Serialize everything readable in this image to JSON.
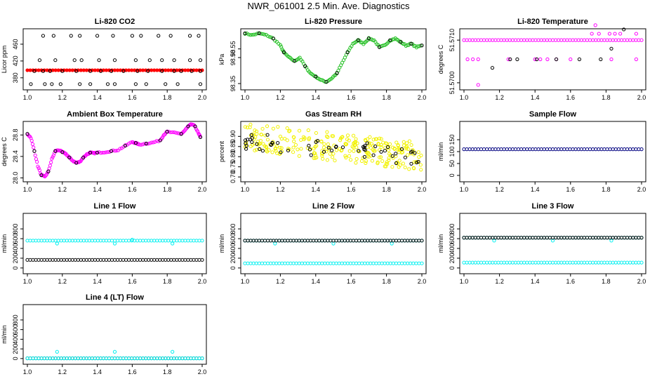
{
  "page_title": "NWR_061001  2.5 Min. Ave. Diagnostics",
  "colors": {
    "black": "#000000",
    "red": "#ff0000",
    "green": "#22c022",
    "magenta": "#ff00ff",
    "yellow": "#f2f200",
    "cyan": "#00f0f0",
    "navy": "#000080"
  },
  "chart_data": [
    {
      "type": "scatter",
      "title": "Li-820 CO2",
      "xlabel": "",
      "ylabel": "Licor ppm",
      "xlim": [
        1.0,
        2.0
      ],
      "ylim": [
        358,
        490
      ],
      "x_ticks": [
        "1.0",
        "1.2",
        "1.4",
        "1.6",
        "1.8",
        "2.0"
      ],
      "y_ticks": [
        "380",
        "420",
        "460"
      ],
      "series": [
        {
          "color": "red",
          "kind": "band",
          "x": [
            1.0,
            1.2,
            1.4,
            1.6,
            1.8,
            2.0
          ],
          "y": [
            398,
            398,
            398,
            398,
            398,
            398
          ]
        },
        {
          "color": "black",
          "kind": "rows",
          "x": [
            1.0,
            1.16,
            1.5,
            1.83,
            1.99
          ],
          "y": [
            [
              480,
              1.09,
              1.15,
              1.25,
              1.3,
              1.4,
              1.49,
              1.6,
              1.65,
              1.75,
              1.82,
              1.93,
              1.98
            ],
            [
              422,
              1.07,
              1.16,
              1.27,
              1.31,
              1.41,
              1.5,
              1.62,
              1.7,
              1.77,
              1.84,
              1.93,
              1.99
            ],
            [
              396,
              1.04,
              1.09,
              1.13,
              1.2,
              1.28,
              1.36,
              1.42,
              1.48,
              1.55,
              1.63,
              1.69,
              1.77,
              1.84,
              1.88,
              1.94,
              1.99
            ],
            [
              365,
              1.02,
              1.1,
              1.14,
              1.19,
              1.3,
              1.36,
              1.46,
              1.5,
              1.62,
              1.68,
              1.79,
              1.86,
              1.99
            ]
          ]
        }
      ]
    },
    {
      "type": "scatter",
      "title": "Li-820 Pressure",
      "xlabel": "",
      "ylabel": "kPa",
      "xlim": [
        1.0,
        2.0
      ],
      "ylim": [
        98.33,
        98.65
      ],
      "x_ticks": [
        "1.0",
        "1.2",
        "1.4",
        "1.6",
        "1.8",
        "2.0"
      ],
      "y_ticks": [
        "98.35",
        "98.50",
        "98.55"
      ],
      "series": [
        {
          "color": "green",
          "kind": "line",
          "x": [
            1.0,
            1.04,
            1.08,
            1.12,
            1.16,
            1.2,
            1.22,
            1.25,
            1.28,
            1.31,
            1.34,
            1.37,
            1.4,
            1.43,
            1.46,
            1.49,
            1.52,
            1.55,
            1.58,
            1.61,
            1.64,
            1.67,
            1.7,
            1.73,
            1.76,
            1.79,
            1.82,
            1.85,
            1.88,
            1.91,
            1.94,
            1.97,
            2.0
          ],
          "y": [
            98.64,
            98.63,
            98.64,
            98.63,
            98.61,
            98.57,
            98.53,
            98.5,
            98.48,
            98.5,
            98.45,
            98.41,
            98.39,
            98.37,
            98.36,
            98.38,
            98.41,
            98.47,
            98.53,
            98.58,
            98.6,
            98.58,
            98.61,
            98.6,
            98.56,
            98.57,
            98.6,
            98.61,
            98.59,
            98.57,
            98.58,
            98.56,
            98.57
          ]
        }
      ]
    },
    {
      "type": "scatter",
      "title": "Li-820 Temperature",
      "xlabel": "",
      "ylabel": "degrees C",
      "xlim": [
        1.0,
        2.0
      ],
      "ylim": [
        51.5699,
        51.5712
      ],
      "x_ticks": [
        "1.0",
        "1.2",
        "1.4",
        "1.6",
        "1.8",
        "2.0"
      ],
      "y_ticks": [
        "51.5700",
        "51.5710"
      ],
      "series": [
        {
          "color": "magenta",
          "kind": "band",
          "x": [
            1.0,
            1.2,
            1.4,
            1.6,
            1.8,
            2.0
          ],
          "y": [
            51.571,
            51.571,
            51.571,
            51.571,
            51.571,
            51.571
          ]
        },
        {
          "color": "magenta",
          "kind": "rows",
          "x": [
            1.0
          ],
          "y": [
            [
              51.57055,
              1.02,
              1.05,
              1.08,
              1.25,
              1.4,
              1.43,
              1.47,
              1.52,
              1.6,
              1.83,
              1.97
            ],
            [
              51.57115,
              1.72,
              1.76,
              1.82,
              1.85,
              1.88,
              1.97
            ],
            [
              51.57135,
              1.74
            ],
            [
              51.56995,
              1.08
            ]
          ]
        },
        {
          "color": "black",
          "kind": "rows",
          "x": [
            1.0
          ],
          "y": [
            [
              51.57055,
              1.26,
              1.3,
              1.41,
              1.52,
              1.65,
              1.77
            ],
            [
              51.5708,
              1.83
            ],
            [
              51.57035,
              1.16
            ],
            [
              51.57125,
              1.9
            ]
          ]
        }
      ]
    },
    {
      "type": "scatter",
      "title": "Ambient Box Temperature",
      "xlabel": "",
      "ylabel": "degrees C",
      "xlim": [
        1.0,
        2.0
      ],
      "ylim": [
        27.98,
        29.0
      ],
      "x_ticks": [
        "1.0",
        "1.2",
        "1.4",
        "1.6",
        "1.8",
        "2.0"
      ],
      "y_ticks": [
        "28.0",
        "28.4",
        "28.8"
      ],
      "series": [
        {
          "color": "magenta",
          "kind": "line",
          "x": [
            1.0,
            1.02,
            1.04,
            1.06,
            1.08,
            1.1,
            1.12,
            1.14,
            1.16,
            1.18,
            1.2,
            1.22,
            1.24,
            1.26,
            1.28,
            1.3,
            1.32,
            1.34,
            1.36,
            1.38,
            1.4,
            1.44,
            1.48,
            1.52,
            1.56,
            1.6,
            1.62,
            1.64,
            1.68,
            1.72,
            1.76,
            1.78,
            1.8,
            1.84,
            1.88,
            1.9,
            1.92,
            1.94,
            1.96,
            1.98,
            1.99
          ],
          "y": [
            28.82,
            28.75,
            28.5,
            28.22,
            28.05,
            28.02,
            28.12,
            28.35,
            28.5,
            28.52,
            28.48,
            28.45,
            28.38,
            28.32,
            28.28,
            28.3,
            28.38,
            28.44,
            28.47,
            28.46,
            28.47,
            28.48,
            28.5,
            28.52,
            28.6,
            28.67,
            28.65,
            28.62,
            28.64,
            28.66,
            28.7,
            28.8,
            28.86,
            28.84,
            28.82,
            28.88,
            28.96,
            29.0,
            28.96,
            28.82,
            28.76
          ]
        }
      ]
    },
    {
      "type": "scatter",
      "title": "Gas Stream RH",
      "xlabel": "",
      "ylabel": "percent",
      "xlim": [
        1.0,
        2.0
      ],
      "ylim": [
        0.69,
        0.96
      ],
      "x_ticks": [
        "1.0",
        "1.2",
        "1.4",
        "1.6",
        "1.8",
        "2.0"
      ],
      "y_ticks": [
        "0.70",
        "0.75",
        "0.80",
        "0.85",
        "0.90"
      ],
      "series": [
        {
          "color": "yellow",
          "kind": "cloud",
          "x": [
            1.0,
            2.0
          ],
          "y": [
            0.9,
            0.8
          ]
        },
        {
          "color": "black",
          "kind": "cloud",
          "x": [
            1.0,
            2.0
          ],
          "y": [
            0.88,
            0.8
          ]
        }
      ]
    },
    {
      "type": "scatter",
      "title": "Sample Flow",
      "xlabel": "",
      "ylabel": "ml/min",
      "xlim": [
        1.0,
        2.0
      ],
      "ylim": [
        -15,
        215
      ],
      "x_ticks": [
        "1.0",
        "1.2",
        "1.4",
        "1.6",
        "1.8",
        "2.0"
      ],
      "y_ticks": [
        "0",
        "50",
        "100",
        "150"
      ],
      "series": [
        {
          "color": "navy",
          "kind": "band",
          "x": [
            1.0,
            2.0
          ],
          "y": [
            110,
            110
          ]
        }
      ]
    },
    {
      "type": "scatter",
      "title": "Line 1 Flow",
      "xlabel": "",
      "ylabel": "ml/min",
      "xlim": [
        1.0,
        2.0
      ],
      "ylim": [
        -60,
        1060
      ],
      "x_ticks": [
        "1.0",
        "1.2",
        "1.4",
        "1.6",
        "1.8",
        "2.0"
      ],
      "y_ticks": [
        "0",
        "200",
        "400",
        "600",
        "800"
      ],
      "series": [
        {
          "color": "cyan",
          "kind": "band",
          "x": [
            1.0,
            2.0
          ],
          "y": [
            560,
            560
          ],
          "outliers": [
            [
              1.17,
              500
            ],
            [
              1.5,
              500
            ],
            [
              1.83,
              500
            ],
            [
              1.6,
              580
            ]
          ]
        },
        {
          "color": "black",
          "kind": "band",
          "x": [
            1.0,
            2.0
          ],
          "y": [
            165,
            165
          ]
        }
      ]
    },
    {
      "type": "scatter",
      "title": "Line 2 Flow",
      "xlabel": "",
      "ylabel": "ml/min",
      "xlim": [
        1.0,
        2.0
      ],
      "ylim": [
        -60,
        1060
      ],
      "x_ticks": [
        "1.0",
        "1.2",
        "1.4",
        "1.6",
        "1.8",
        "2.0"
      ],
      "y_ticks": [
        "0",
        "200",
        "400",
        "600",
        "800"
      ],
      "series": [
        {
          "color": "cyan",
          "kind": "band",
          "x": [
            1.0,
            2.0
          ],
          "y": [
            560,
            560
          ],
          "outliers": [
            [
              1.17,
              500
            ],
            [
              1.5,
              500
            ],
            [
              1.83,
              500
            ]
          ]
        },
        {
          "color": "black",
          "kind": "band",
          "x": [
            1.0,
            2.0
          ],
          "y": [
            560,
            560
          ]
        },
        {
          "color": "cyan",
          "kind": "band",
          "x": [
            1.0,
            2.0
          ],
          "y": [
            95,
            95
          ]
        }
      ]
    },
    {
      "type": "scatter",
      "title": "Line 3 Flow",
      "xlabel": "",
      "ylabel": "ml/min",
      "xlim": [
        1.0,
        2.0
      ],
      "ylim": [
        -60,
        1060
      ],
      "x_ticks": [
        "1.0",
        "1.2",
        "1.4",
        "1.6",
        "1.8",
        "2.0"
      ],
      "y_ticks": [
        "0",
        "200",
        "400",
        "600",
        "800"
      ],
      "series": [
        {
          "color": "cyan",
          "kind": "band",
          "x": [
            1.0,
            2.0
          ],
          "y": [
            620,
            620
          ],
          "outliers": [
            [
              1.17,
              560
            ],
            [
              1.5,
              560
            ],
            [
              1.83,
              560
            ]
          ]
        },
        {
          "color": "black",
          "kind": "band",
          "x": [
            1.0,
            2.0
          ],
          "y": [
            620,
            620
          ]
        },
        {
          "color": "cyan",
          "kind": "band",
          "x": [
            1.0,
            2.0
          ],
          "y": [
            110,
            110
          ]
        }
      ]
    },
    {
      "type": "scatter",
      "title": "Line 4 (LT) Flow",
      "xlabel": "",
      "ylabel": "ml/min",
      "xlim": [
        1.0,
        2.0
      ],
      "ylim": [
        -60,
        1060
      ],
      "x_ticks": [
        "1.0",
        "1.2",
        "1.4",
        "1.6",
        "1.8",
        "2.0"
      ],
      "y_ticks": [
        "0",
        "200",
        "400",
        "600",
        "800"
      ],
      "series": [
        {
          "color": "black",
          "kind": "band",
          "x": [
            1.0,
            2.0
          ],
          "y": [
            5,
            5
          ]
        },
        {
          "color": "cyan",
          "kind": "band",
          "x": [
            1.0,
            2.0
          ],
          "y": [
            5,
            5
          ],
          "outliers": [
            [
              1.17,
              140
            ],
            [
              1.5,
              140
            ],
            [
              1.83,
              140
            ]
          ]
        }
      ]
    }
  ]
}
